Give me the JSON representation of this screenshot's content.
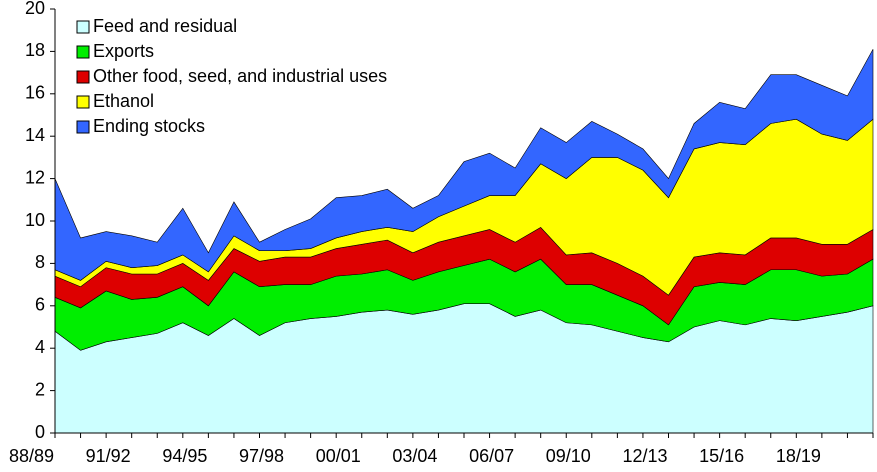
{
  "chart_data": {
    "type": "stacked_area",
    "categories": [
      "88/89",
      null,
      null,
      "91/92",
      null,
      null,
      "94/95",
      null,
      null,
      "97/98",
      null,
      null,
      "00/01",
      null,
      null,
      "03/04",
      null,
      null,
      "06/07",
      null,
      null,
      "09/10",
      null,
      null,
      "12/13",
      null,
      null,
      "15/16",
      null,
      null,
      "18/19",
      null,
      null
    ],
    "series": [
      {
        "name": "Feed and residual",
        "color": "#ccffff",
        "values": [
          4.8,
          3.9,
          4.3,
          4.5,
          4.7,
          5.2,
          4.6,
          5.4,
          4.6,
          5.2,
          5.4,
          5.5,
          5.7,
          5.8,
          5.6,
          5.8,
          6.1,
          6.1,
          5.5,
          5.8,
          5.2,
          5.1,
          4.8,
          4.5,
          4.3,
          5.0,
          5.3,
          5.1,
          5.4,
          5.3,
          5.5,
          5.7,
          6.0
        ]
      },
      {
        "name": "Exports",
        "color": "#00ee00",
        "values": [
          1.6,
          2.0,
          2.4,
          1.8,
          1.7,
          1.7,
          1.4,
          2.2,
          2.3,
          1.8,
          1.6,
          1.9,
          1.8,
          1.9,
          1.6,
          1.8,
          1.8,
          2.1,
          2.1,
          2.4,
          1.8,
          1.9,
          1.7,
          1.5,
          0.8,
          1.9,
          1.8,
          1.9,
          2.3,
          2.4,
          1.9,
          1.8,
          2.2
        ]
      },
      {
        "name": "Other food, seed, and industrial uses",
        "color": "#dd0000",
        "values": [
          1.0,
          1.0,
          1.1,
          1.2,
          1.1,
          1.1,
          1.2,
          1.1,
          1.2,
          1.3,
          1.3,
          1.3,
          1.4,
          1.4,
          1.3,
          1.4,
          1.4,
          1.4,
          1.4,
          1.5,
          1.4,
          1.5,
          1.5,
          1.4,
          1.4,
          1.4,
          1.4,
          1.4,
          1.5,
          1.5,
          1.5,
          1.4,
          1.4
        ]
      },
      {
        "name": "Ethanol",
        "color": "#ffff00",
        "values": [
          0.3,
          0.3,
          0.3,
          0.3,
          0.4,
          0.4,
          0.4,
          0.6,
          0.5,
          0.3,
          0.4,
          0.5,
          0.6,
          0.6,
          1.0,
          1.2,
          1.4,
          1.6,
          2.2,
          3.0,
          3.6,
          4.5,
          5.0,
          5.0,
          4.6,
          5.1,
          5.2,
          5.2,
          5.4,
          5.6,
          5.2,
          4.9,
          5.2
        ]
      },
      {
        "name": "Ending stocks",
        "color": "#3366ff",
        "values": [
          4.3,
          2.0,
          1.4,
          1.5,
          1.1,
          2.2,
          0.9,
          1.6,
          0.4,
          1.0,
          1.4,
          1.9,
          1.7,
          1.8,
          1.1,
          1.0,
          2.1,
          2.0,
          1.3,
          1.7,
          1.7,
          1.7,
          1.1,
          1.0,
          0.9,
          1.2,
          1.9,
          1.7,
          2.3,
          2.1,
          2.3,
          2.1,
          3.3
        ]
      }
    ],
    "ylim": [
      0,
      20
    ],
    "yticks": [
      0,
      2,
      4,
      6,
      8,
      10,
      12,
      14,
      16,
      18,
      20
    ],
    "grid": false,
    "legend": "top-left"
  }
}
